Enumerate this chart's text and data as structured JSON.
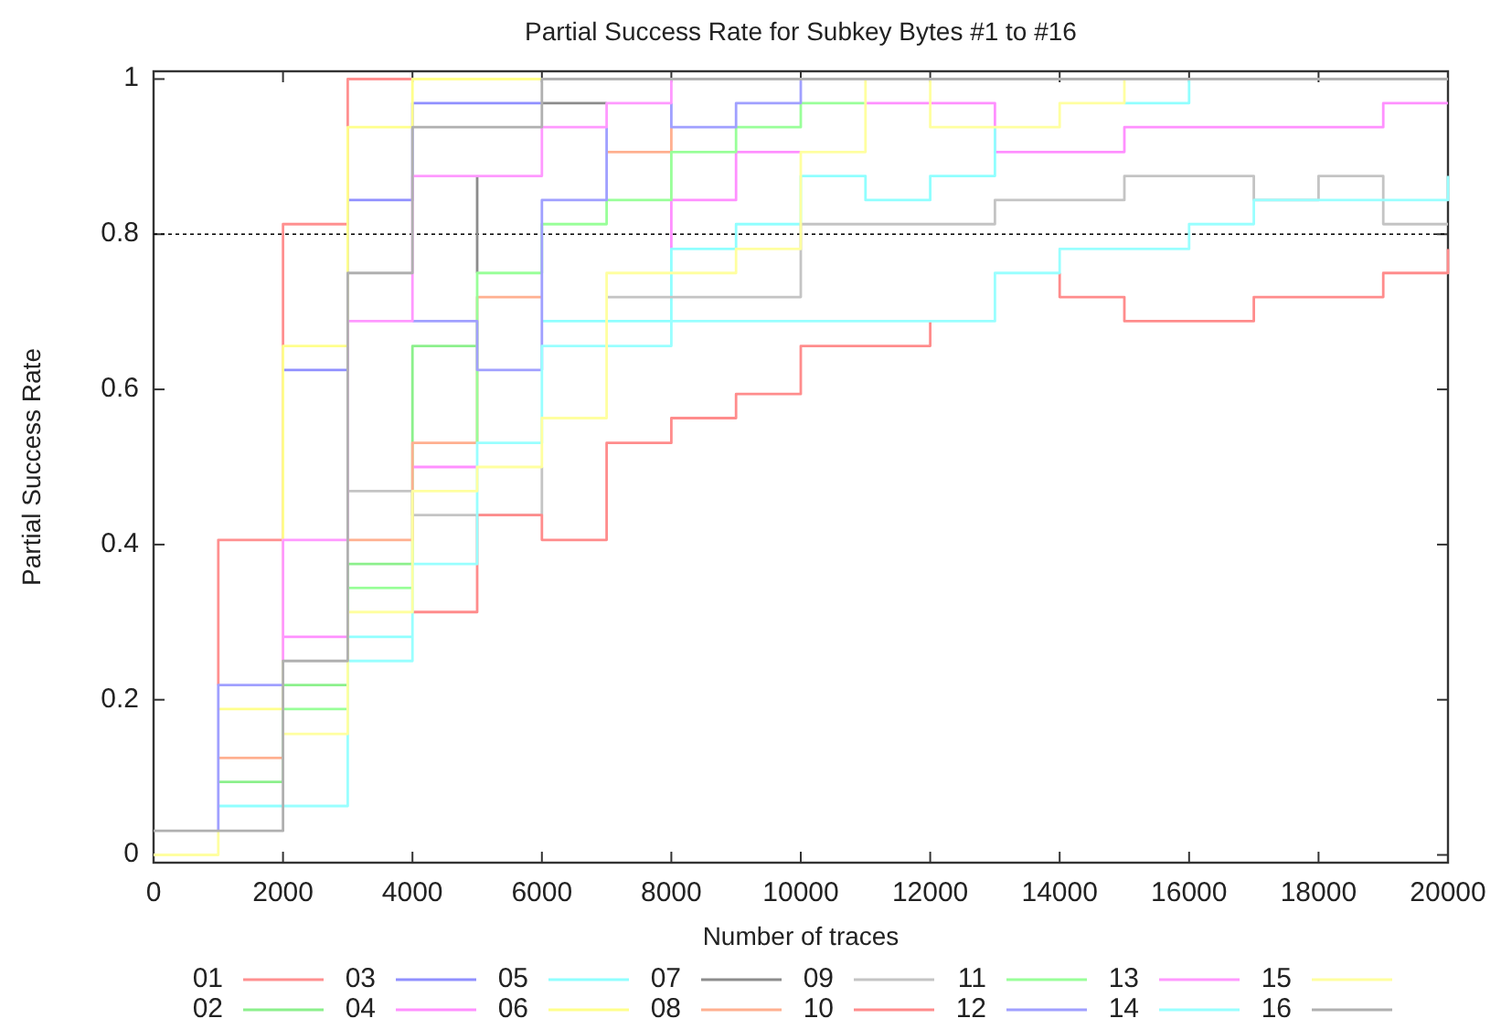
{
  "chart_data": {
    "type": "line",
    "title": "Partial Success Rate for Subkey Bytes #1 to #16",
    "xlabel": "Number of traces",
    "ylabel": "Partial Success Rate",
    "xlim": [
      0,
      20000
    ],
    "xticks": [
      0,
      2000,
      4000,
      6000,
      8000,
      10000,
      12000,
      14000,
      16000,
      18000,
      20000
    ],
    "ylim": [
      -0.01,
      1.01
    ],
    "yticks": [
      0,
      0.2,
      0.4,
      0.6,
      0.8,
      1
    ],
    "legend": "bottom",
    "ref_lines": [
      {
        "axis": "y",
        "value": 0.8,
        "color": "#000000",
        "line_style": "dotted"
      }
    ],
    "series": [
      {
        "name": "01",
        "color": "#ff9090",
        "x": [
          1000,
          1000,
          2000,
          2000,
          3000,
          3000,
          4000
        ],
        "values": [
          0.219,
          0.406,
          0.406,
          0.813,
          0.813,
          1,
          1
        ]
      },
      {
        "name": "02",
        "color": "#8cf08c",
        "x": [
          1000,
          2000,
          2000,
          3000,
          3000,
          4000,
          4000,
          5000
        ],
        "values": [
          0.094,
          0.094,
          0.219,
          0.219,
          0.375,
          0.375,
          0.656,
          0.656
        ]
      },
      {
        "name": "03",
        "color": "#9090ff",
        "x": [
          2000,
          3000,
          3000,
          4000,
          4000,
          6000
        ],
        "values": [
          0.625,
          0.625,
          0.844,
          0.844,
          0.969,
          0.969
        ]
      },
      {
        "name": "04",
        "color": "#ff90ff",
        "x": [
          2000,
          3000,
          null,
          4000,
          5000,
          null,
          8000,
          8000,
          9000,
          9000,
          10000,
          null,
          11000,
          13000,
          13000,
          15000,
          15000,
          19000,
          19000,
          20000
        ],
        "values": [
          0.281,
          0.281,
          null,
          0.5,
          0.5,
          null,
          0.781,
          0.844,
          0.844,
          0.906,
          0.906,
          null,
          0.969,
          0.969,
          0.906,
          0.906,
          0.938,
          0.938,
          0.969,
          0.969
        ]
      },
      {
        "name": "05",
        "color": "#90ffff",
        "x": [
          1000,
          2000,
          null,
          3000,
          4000,
          null,
          6000,
          8000,
          8000,
          9000,
          9000,
          10000,
          10000,
          11000,
          11000,
          12000,
          12000,
          13000,
          13000,
          null,
          15000,
          16000,
          16000
        ],
        "values": [
          0.063,
          0.063,
          null,
          0.281,
          0.281,
          null,
          0.688,
          0.688,
          0.781,
          0.781,
          0.813,
          0.813,
          0.875,
          0.875,
          0.844,
          0.844,
          0.875,
          0.875,
          0.938,
          null,
          0.969,
          0.969,
          1
        ]
      },
      {
        "name": "06",
        "color": "#ffff8c",
        "x": [
          1000,
          2000,
          2000,
          3000,
          3000,
          4000,
          4000,
          6000
        ],
        "values": [
          0.188,
          0.188,
          0.656,
          0.656,
          0.938,
          0.938,
          1,
          1
        ]
      },
      {
        "name": "07",
        "color": "#8c8c8c",
        "x": [
          5000,
          5000,
          null,
          6000,
          7000
        ],
        "values": [
          0.75,
          0.875,
          null,
          0.969,
          0.969
        ]
      },
      {
        "name": "08",
        "color": "#ffb090",
        "x": [
          1000,
          2000,
          null,
          3000,
          4000,
          4000,
          5000,
          5000,
          6000,
          null,
          7000,
          8000,
          8000
        ],
        "values": [
          0.125,
          0.125,
          null,
          0.406,
          0.406,
          0.531,
          0.531,
          0.719,
          0.719,
          null,
          0.906,
          0.906,
          0.938
        ]
      },
      {
        "name": "09",
        "color": "#c4c4c4",
        "x": [
          3000,
          4000,
          4000,
          6000,
          6000,
          null,
          7000,
          10000,
          10000,
          13000,
          13000,
          15000,
          15000,
          17000,
          17000,
          18000,
          18000,
          19000,
          19000,
          20000
        ],
        "values": [
          0.469,
          0.469,
          0.438,
          0.438,
          0.5,
          null,
          0.719,
          0.719,
          0.813,
          0.813,
          0.844,
          0.844,
          0.875,
          0.875,
          0.844,
          0.844,
          0.875,
          0.875,
          0.813,
          0.813
        ]
      },
      {
        "name": "10",
        "color": "#ff8c8c",
        "x": [
          4000,
          5000,
          5000,
          6000,
          6000,
          7000,
          7000,
          8000,
          8000,
          9000,
          9000,
          10000,
          10000,
          12000,
          12000,
          null,
          14000,
          14000,
          15000,
          15000,
          17000,
          17000,
          19000,
          19000,
          20000,
          20000
        ],
        "values": [
          0.313,
          0.313,
          0.438,
          0.438,
          0.406,
          0.406,
          0.531,
          0.531,
          0.563,
          0.563,
          0.594,
          0.594,
          0.656,
          0.656,
          0.688,
          null,
          0.75,
          0.719,
          0.719,
          0.688,
          0.688,
          0.719,
          0.719,
          0.75,
          0.75,
          0.781
        ]
      },
      {
        "name": "11",
        "color": "#99ff99",
        "x": [
          2000,
          3000,
          3000,
          4000,
          null,
          5000,
          5000,
          6000,
          6000,
          7000,
          7000,
          8000,
          8000,
          9000,
          9000,
          10000,
          10000,
          11000
        ],
        "values": [
          0.188,
          0.188,
          0.344,
          0.344,
          null,
          0.531,
          0.75,
          0.75,
          0.813,
          0.813,
          0.844,
          0.844,
          0.906,
          0.906,
          0.938,
          0.938,
          0.969,
          0.969
        ]
      },
      {
        "name": "12",
        "color": "#a0a0ff",
        "x": [
          1000,
          1000,
          2000,
          null,
          4000,
          5000,
          5000,
          6000,
          6000,
          7000,
          7000,
          null,
          8000,
          8000,
          9000,
          9000,
          10000,
          10000
        ],
        "values": [
          0.031,
          0.219,
          0.219,
          null,
          0.688,
          0.688,
          0.625,
          0.625,
          0.844,
          0.844,
          0.938,
          null,
          0.969,
          0.938,
          0.938,
          0.969,
          0.969,
          1
        ]
      },
      {
        "name": "13",
        "color": "#ff99ff",
        "x": [
          2000,
          2000,
          3000,
          3000,
          4000,
          4000,
          6000,
          6000,
          7000,
          7000,
          8000,
          8000
        ],
        "values": [
          0.25,
          0.406,
          0.406,
          0.688,
          0.688,
          0.875,
          0.875,
          0.938,
          0.938,
          0.969,
          0.969,
          1
        ]
      },
      {
        "name": "14",
        "color": "#99ffff",
        "x": [
          2000,
          3000,
          3000,
          4000,
          4000,
          5000,
          5000,
          6000,
          6000,
          8000,
          8000,
          13000,
          13000,
          14000,
          14000,
          16000,
          16000,
          17000,
          17000,
          20000,
          20000
        ],
        "values": [
          0.063,
          0.063,
          0.25,
          0.25,
          0.375,
          0.375,
          0.531,
          0.531,
          0.656,
          0.656,
          0.688,
          0.688,
          0.75,
          0.75,
          0.781,
          0.781,
          0.813,
          0.813,
          0.844,
          0.844,
          0.875
        ]
      },
      {
        "name": "15",
        "color": "#ffffa0",
        "x": [
          0,
          1000,
          1000,
          null,
          2000,
          3000,
          3000,
          4000,
          4000,
          5000,
          5000,
          6000,
          6000,
          7000,
          7000,
          9000,
          9000,
          10000,
          10000,
          11000,
          11000,
          12000,
          12000,
          14000,
          14000,
          15000,
          15000
        ],
        "values": [
          0,
          0,
          0.031,
          null,
          0.156,
          0.156,
          0.313,
          0.313,
          0.469,
          0.469,
          0.5,
          0.5,
          0.563,
          0.563,
          0.75,
          0.75,
          0.781,
          0.781,
          0.906,
          0.906,
          1,
          1,
          0.938,
          0.938,
          0.969,
          0.969,
          1
        ]
      },
      {
        "name": "16",
        "color": "#b0b0b0",
        "x": [
          0,
          2000,
          2000,
          3000,
          3000,
          4000,
          4000,
          6000,
          6000,
          20000
        ],
        "values": [
          0.031,
          0.031,
          0.25,
          0.25,
          0.75,
          0.75,
          0.938,
          0.938,
          1,
          1
        ]
      }
    ]
  }
}
